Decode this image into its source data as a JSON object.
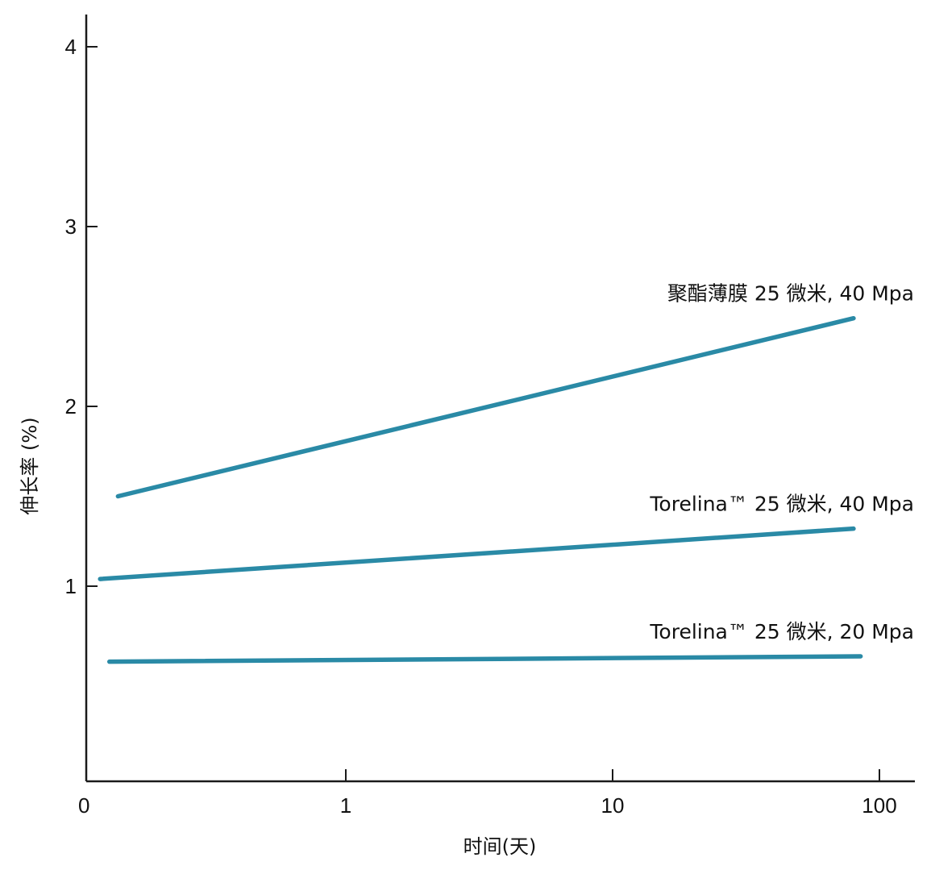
{
  "chart_data": {
    "type": "line",
    "title": "",
    "xlabel": "时间(天)",
    "ylabel": "伸长率 (%)",
    "x_scale": "log",
    "x_ticks": [
      {
        "value": 0,
        "label": "0"
      },
      {
        "value": 1,
        "label": "1"
      },
      {
        "value": 10,
        "label": "10"
      },
      {
        "value": 100,
        "label": "100"
      }
    ],
    "y_ticks": [
      {
        "value": 1,
        "label": "1"
      },
      {
        "value": 2,
        "label": "2"
      },
      {
        "value": 3,
        "label": "3"
      },
      {
        "value": 4,
        "label": "4"
      }
    ],
    "ylim": [
      0,
      4.2
    ],
    "grid": false,
    "legend": "inline labels at right end of lines",
    "line_color": "#2a8aa6",
    "series": [
      {
        "name": "聚酯薄膜 25 微米, 40 Mpa",
        "x": [
          0.14,
          80
        ],
        "y": [
          1.5,
          2.49
        ]
      },
      {
        "name": "Torelina™ 25 微米, 40 Mpa",
        "x": [
          0.12,
          80
        ],
        "y": [
          1.04,
          1.32
        ]
      },
      {
        "name": "Torelina™ 25 微米, 20 Mpa",
        "x": [
          0.13,
          85
        ],
        "y": [
          0.58,
          0.61
        ]
      }
    ]
  }
}
